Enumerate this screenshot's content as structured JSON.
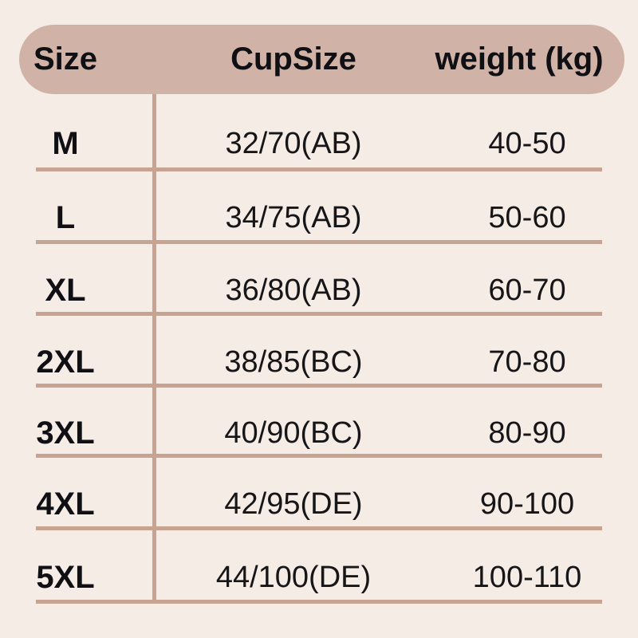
{
  "chart_data": {
    "type": "table",
    "columns": [
      "Size",
      "CupSize",
      "weight (kg)"
    ],
    "rows": [
      [
        "M",
        "32/70(AB)",
        "40-50"
      ],
      [
        "L",
        "34/75(AB)",
        "50-60"
      ],
      [
        "XL",
        "36/80(AB)",
        "60-70"
      ],
      [
        "2XL",
        "38/85(BC)",
        "70-80"
      ],
      [
        "3XL",
        "40/90(BC)",
        "80-90"
      ],
      [
        "4XL",
        "42/95(DE)",
        "90-100"
      ],
      [
        "5XL",
        "44/100(DE)",
        "100-110"
      ]
    ],
    "legend_position": "none",
    "grid": "row-separators-and-first-column-divider"
  },
  "colors": {
    "background": "#f6ece6",
    "header_pill": "#d1b2a6",
    "grid_line": "#c9a392",
    "text": "#141414"
  }
}
